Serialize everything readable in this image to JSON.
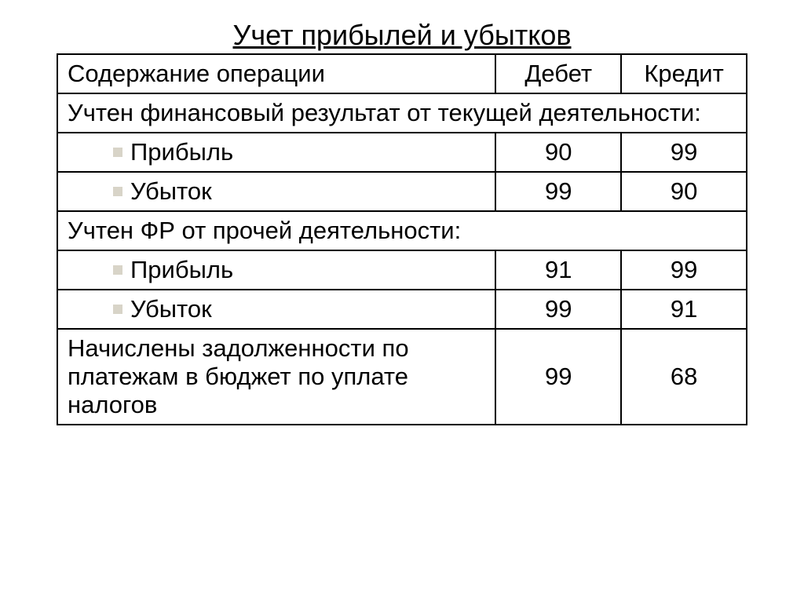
{
  "title": "Учет прибылей и убытков",
  "headers": {
    "description": "Содержание операции",
    "debit": "Дебет",
    "credit": "Кредит"
  },
  "rows": [
    {
      "type": "span",
      "text": "Учтен финансовый результат от текущей деятельности:"
    },
    {
      "type": "data",
      "indent": true,
      "text": "Прибыль",
      "debit": "90",
      "credit": "99"
    },
    {
      "type": "data",
      "indent": true,
      "text": "Убыток",
      "debit": "99",
      "credit": "90"
    },
    {
      "type": "span",
      "text": "Учтен ФР от прочей деятельности:"
    },
    {
      "type": "data",
      "indent": true,
      "text": "Прибыль",
      "debit": "91",
      "credit": "99"
    },
    {
      "type": "data",
      "indent": true,
      "text": "Убыток",
      "debit": "99",
      "credit": "91"
    },
    {
      "type": "data",
      "indent": false,
      "text": "Начислены задолженности по платежам в бюджет по уплате налогов",
      "debit": "99",
      "credit": "68"
    }
  ],
  "style": {
    "background_color": "#ffffff",
    "border_color": "#000000",
    "bullet_color": "#d8d4c8",
    "title_fontsize": 36,
    "cell_fontsize": 31,
    "text_color": "#000000"
  }
}
